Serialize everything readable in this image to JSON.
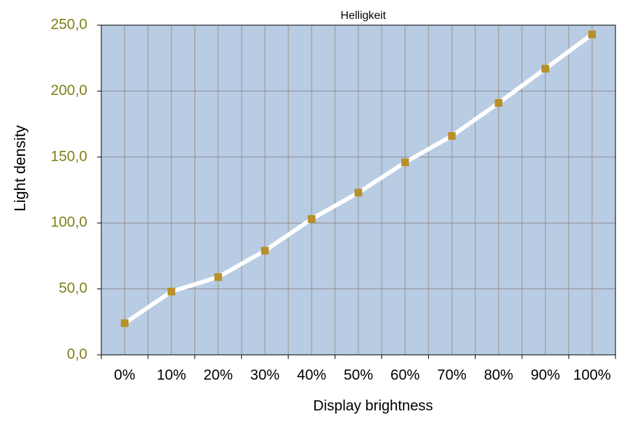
{
  "chart_data": {
    "type": "line",
    "title": "Helligkeit",
    "x_label": "Display brightness",
    "y_label": "Light density",
    "categories": [
      "0%",
      "10%",
      "20%",
      "30%",
      "40%",
      "50%",
      "60%",
      "70%",
      "80%",
      "90%",
      "100%"
    ],
    "series": [
      {
        "name": "Helligkeit",
        "color": "#b8902a",
        "line_color": "#ffffff",
        "values": [
          24,
          48,
          59,
          79,
          103,
          123,
          146,
          166,
          191,
          217,
          243
        ]
      }
    ],
    "ylim": [
      0,
      250
    ],
    "yticks": [
      {
        "value": 0,
        "label": "0,0"
      },
      {
        "value": 50,
        "label": "50,0"
      },
      {
        "value": 100,
        "label": "100,0"
      },
      {
        "value": 150,
        "label": "150,0"
      },
      {
        "value": 200,
        "label": "200,0"
      },
      {
        "value": 250,
        "label": "250,0"
      }
    ],
    "grid": true,
    "legend": false,
    "background": "#b8cce4"
  }
}
